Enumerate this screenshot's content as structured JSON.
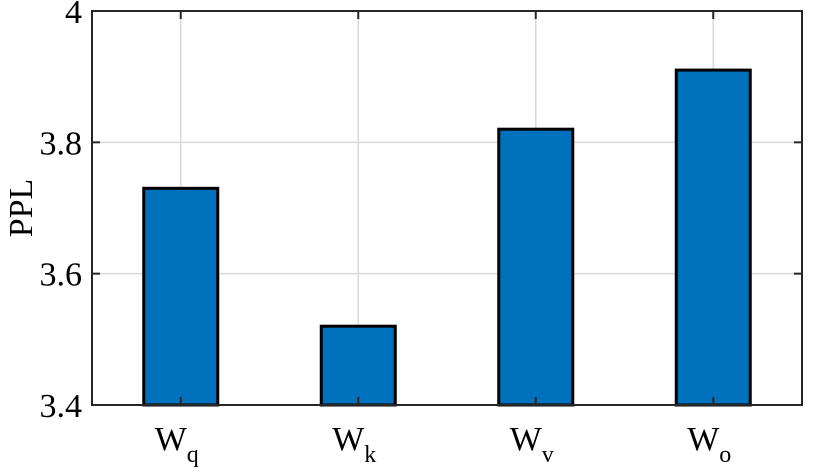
{
  "chart_data": {
    "type": "bar",
    "categories": [
      {
        "base": "W",
        "sub": "q"
      },
      {
        "base": "W",
        "sub": "k"
      },
      {
        "base": "W",
        "sub": "v"
      },
      {
        "base": "W",
        "sub": "o"
      }
    ],
    "values": [
      3.73,
      3.52,
      3.82,
      3.91
    ],
    "title": "",
    "xlabel": "",
    "ylabel": "PPL",
    "ylim": [
      3.4,
      4.0
    ],
    "yticks": [
      3.4,
      3.6,
      3.8,
      4.0
    ],
    "ytick_labels": [
      "3.4",
      "3.6",
      "3.8",
      "4"
    ],
    "grid": true,
    "legend": "none",
    "colors": {
      "bar_fill": "#0072BD",
      "bar_edge": "#000000",
      "grid": "#d9d9d9",
      "axes": "#262626"
    }
  }
}
